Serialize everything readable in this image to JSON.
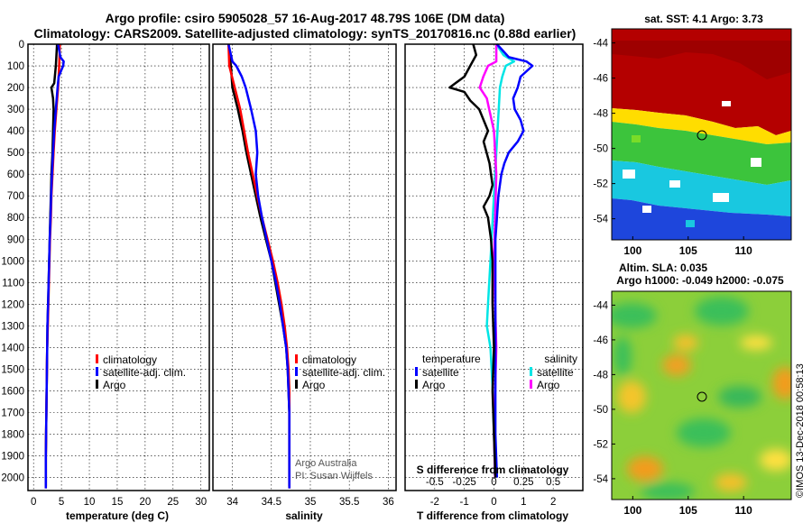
{
  "header": {
    "line1": "Argo profile: csiro 5905028_57 16-Aug-2017 48.79S 106E (DM data)",
    "line2": "Climatology: CARS2009. Satellite-adjusted climatology: synTS_20170816.nc (0.88d earlier)"
  },
  "colors": {
    "climatology": "#ff0000",
    "satellite": "#0000ff",
    "argo": "#000000",
    "sat_salinity": "#00e5e5",
    "argo_salinity": "#ff00ff"
  },
  "chart_data": [
    {
      "type": "line",
      "name": "temperature",
      "xlabel": "temperature (deg C)",
      "ylabel": "depth",
      "xlim": [
        -1,
        31.5
      ],
      "ylim": [
        2060,
        0
      ],
      "xticks": [
        "0",
        "5",
        "10",
        "15",
        "20",
        "25",
        "30"
      ],
      "yticks": [
        "0",
        "100",
        "200",
        "300",
        "400",
        "500",
        "600",
        "700",
        "800",
        "900",
        "1000",
        "1100",
        "1200",
        "1300",
        "1400",
        "1500",
        "1600",
        "1700",
        "1800",
        "1900",
        "2000"
      ],
      "series": [
        {
          "name": "climatology",
          "color": "#ff0000",
          "depth": [
            0,
            100,
            200,
            300,
            400,
            500,
            600,
            700,
            800,
            900,
            1000,
            1100,
            1200,
            1300,
            1400,
            1500,
            1600,
            1700,
            1800,
            1900,
            2000,
            2050
          ],
          "values": [
            4.7,
            4.6,
            4.4,
            4.1,
            3.8,
            3.6,
            3.4,
            3.2,
            3.1,
            2.95,
            2.85,
            2.75,
            2.65,
            2.55,
            2.45,
            2.4,
            2.35,
            2.3,
            2.25,
            2.2,
            2.2,
            2.2
          ]
        },
        {
          "name": "satellite-adj. clim.",
          "color": "#0000ff",
          "depth": [
            0,
            60,
            80,
            100,
            150,
            200,
            300,
            400,
            500,
            600,
            700,
            800,
            900,
            1000,
            1100,
            1200,
            1300,
            1400,
            1500,
            1600,
            1700,
            1800,
            1900,
            2000,
            2050
          ],
          "values": [
            4.4,
            4.8,
            5.4,
            5.3,
            4.5,
            4.3,
            4.0,
            3.7,
            3.5,
            3.3,
            3.15,
            3.05,
            2.9,
            2.8,
            2.7,
            2.6,
            2.5,
            2.45,
            2.4,
            2.35,
            2.3,
            2.25,
            2.2,
            2.2,
            2.2
          ]
        },
        {
          "name": "Argo",
          "color": "#000000",
          "depth": [
            0,
            100,
            180,
            200,
            250,
            300,
            400,
            500,
            600,
            700,
            800,
            900,
            1000,
            1100,
            1200,
            1300,
            1400,
            1500,
            1600,
            1700,
            1800,
            1900,
            2000,
            2040
          ],
          "values": [
            4.2,
            4.0,
            3.7,
            3.2,
            3.5,
            3.6,
            3.5,
            3.4,
            3.2,
            3.1,
            3.0,
            2.9,
            2.8,
            2.7,
            2.6,
            2.5,
            2.45,
            2.4,
            2.35,
            2.3,
            2.25,
            2.2,
            2.2,
            2.2
          ]
        }
      ],
      "legend": [
        "climatology",
        "satellite-adj. clim.",
        "Argo"
      ]
    },
    {
      "type": "line",
      "name": "salinity",
      "xlabel": "salinity",
      "xlim": [
        33.75,
        36.1
      ],
      "xticks": [
        "34",
        "34.5",
        "35",
        "35.5",
        "36"
      ],
      "series": [
        {
          "name": "climatology",
          "color": "#ff0000",
          "depth": [
            0,
            100,
            200,
            300,
            400,
            500,
            600,
            700,
            800,
            900,
            1000,
            1100,
            1200,
            1300,
            1400,
            1500,
            1600,
            1700,
            1800,
            1900,
            2000,
            2050
          ],
          "values": [
            33.95,
            33.96,
            34.03,
            34.1,
            34.15,
            34.2,
            34.26,
            34.32,
            34.38,
            34.45,
            34.52,
            34.58,
            34.63,
            34.67,
            34.7,
            34.72,
            34.73,
            34.73,
            34.73,
            34.73,
            34.73,
            34.73
          ]
        },
        {
          "name": "satellite-adj. clim.",
          "color": "#0000ff",
          "depth": [
            0,
            80,
            100,
            150,
            200,
            300,
            400,
            500,
            600,
            700,
            800,
            900,
            1000,
            1100,
            1200,
            1300,
            1400,
            1500,
            1600,
            1700,
            1800,
            1900,
            2000,
            2050
          ],
          "values": [
            33.95,
            34.0,
            34.05,
            34.12,
            34.17,
            34.24,
            34.3,
            34.32,
            34.3,
            34.33,
            34.38,
            34.44,
            34.5,
            34.56,
            34.61,
            34.65,
            34.69,
            34.71,
            34.72,
            34.73,
            34.73,
            34.73,
            34.73,
            34.73
          ]
        },
        {
          "name": "Argo",
          "color": "#000000",
          "depth": [
            0,
            100,
            200,
            300,
            400,
            500,
            600,
            700,
            800,
            900,
            1000,
            1100,
            1200,
            1300,
            1400,
            1500,
            1600,
            1700,
            1800,
            1900,
            2000,
            2040
          ],
          "values": [
            33.95,
            33.98,
            34.0,
            34.07,
            34.13,
            34.18,
            34.24,
            34.3,
            34.36,
            34.43,
            34.5,
            34.55,
            34.6,
            34.65,
            34.69,
            34.71,
            34.72,
            34.73,
            34.73,
            34.73,
            34.73,
            34.73
          ]
        }
      ],
      "legend": [
        "climatology",
        "satellite-adj. clim.",
        "Argo"
      ],
      "credit": [
        "Argo Australia",
        "PI: Susan Wijffels"
      ]
    },
    {
      "type": "line",
      "name": "difference from climatology",
      "xlabel": "T difference from climatology",
      "x2label": "S difference from climatology",
      "xlim": [
        -3,
        3
      ],
      "xticks": [
        "-2",
        "-1",
        "0",
        "1",
        "2"
      ],
      "x2lim": [
        -0.75,
        0.75
      ],
      "x2ticks": [
        "-0.5",
        "-0.25",
        "0",
        "0.25",
        "0.5"
      ],
      "series": [
        {
          "name": "temperature satellite",
          "color": "#0000ff",
          "depth": [
            0,
            60,
            80,
            100,
            150,
            200,
            250,
            300,
            350,
            400,
            450,
            500,
            550,
            600,
            700,
            800,
            900,
            1000,
            1200,
            1400,
            1600,
            1800,
            2000
          ],
          "values": [
            0.1,
            0.5,
            1.1,
            1.3,
            0.9,
            0.8,
            0.65,
            0.7,
            0.9,
            1.0,
            0.8,
            0.5,
            0.35,
            0.25,
            0.15,
            0.1,
            0.05,
            0.05,
            0.05,
            0.05,
            0.05,
            0.05,
            0.1
          ]
        },
        {
          "name": "temperature Argo",
          "color": "#000000",
          "depth": [
            0,
            50,
            100,
            150,
            180,
            200,
            220,
            260,
            300,
            350,
            400,
            450,
            500,
            550,
            600,
            650,
            700,
            750,
            800,
            900,
            1000,
            1200,
            1400,
            1600,
            1800,
            2000
          ],
          "values": [
            -0.7,
            -0.6,
            -0.8,
            -1.0,
            -1.3,
            -1.5,
            -1.0,
            -0.8,
            -0.5,
            -0.35,
            -0.2,
            -0.35,
            -0.25,
            -0.15,
            -0.1,
            -0.05,
            -0.15,
            -0.35,
            -0.2,
            -0.1,
            -0.05,
            -0.05,
            0.0,
            -0.05,
            0.0,
            0.05
          ]
        },
        {
          "name": "salinity satellite",
          "color": "#00e5e5",
          "depth": [
            0,
            50,
            80,
            100,
            150,
            200,
            300,
            400,
            600,
            800,
            1000,
            1200,
            1300,
            1400,
            1600,
            1800,
            2000
          ],
          "values": [
            0.02,
            0.08,
            0.17,
            0.1,
            0.07,
            0.05,
            0.04,
            0.03,
            0.01,
            -0.01,
            -0.03,
            -0.05,
            -0.06,
            -0.03,
            -0.01,
            0.0,
            0.01
          ]
        },
        {
          "name": "salinity Argo",
          "color": "#ff00ff",
          "depth": [
            0,
            80,
            100,
            150,
            200,
            250,
            300,
            400,
            600,
            800,
            1000,
            1200,
            1400,
            1600,
            1800,
            2000
          ],
          "values": [
            0.02,
            0.02,
            -0.05,
            -0.09,
            -0.12,
            -0.06,
            -0.04,
            0.0,
            0.02,
            0.01,
            0.0,
            0.01,
            0.02,
            0.01,
            0.0,
            0.01
          ]
        }
      ],
      "legend_left": {
        "title": "temperature",
        "items": [
          "satellite",
          "Argo"
        ]
      },
      "legend_right": {
        "title": "salinity",
        "items": [
          "satellite",
          "Argo"
        ]
      }
    },
    {
      "type": "heatmap",
      "name": "sat. SST",
      "title": "sat. SST: 4.1 Argo: 3.73",
      "xticks": [
        "100",
        "105",
        "110"
      ],
      "yticks": [
        "-44",
        "-46",
        "-48",
        "-50",
        "-52",
        "-54"
      ]
    },
    {
      "type": "heatmap",
      "name": "Altim. SLA",
      "title": "Altim. SLA: 0.035",
      "subtitle": "Argo h1000: -0.049 h2000: -0.075",
      "xticks": [
        "100",
        "105",
        "110"
      ],
      "yticks": [
        "-44",
        "-46",
        "-48",
        "-50",
        "-52",
        "-54"
      ]
    }
  ],
  "watermark": "©IMOS 13-Dec-2018 00:58:13"
}
